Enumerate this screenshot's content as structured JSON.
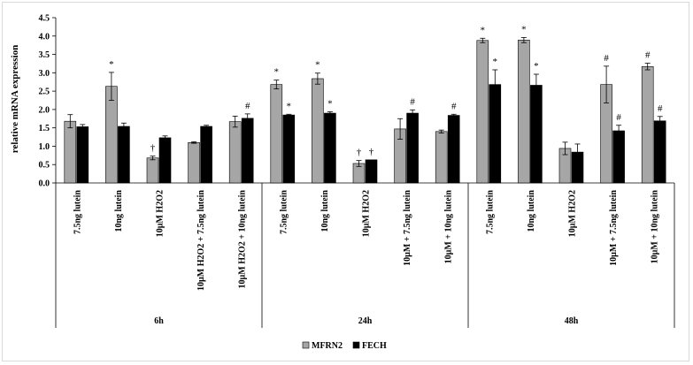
{
  "chart_data": {
    "type": "bar",
    "ylabel": "relative mRNA expression",
    "ylim": [
      0,
      4.5
    ],
    "yticks": [
      "0.0",
      "0.5",
      "1.0",
      "1.5",
      "2.0",
      "2.5",
      "3.0",
      "3.5",
      "4.0",
      "4.5"
    ],
    "grid": false,
    "legend_position": "bottom",
    "groups": [
      {
        "label": "6h",
        "categories": [
          "7.5ng lutein",
          "10ng lutein",
          "10µM H2O2",
          "10µM H2O2 + 7.5ng lutein",
          "10µM H2O2 + 10ng lutein"
        ]
      },
      {
        "label": "24h",
        "categories": [
          "7.5ng lutein",
          "10ng lutein",
          "10µM H2O2",
          "10µM + 7.5ng lutein",
          "10µM + 10ng lutein"
        ]
      },
      {
        "label": "48h",
        "categories": [
          "7.5ng lutein",
          "10ng lutein",
          "10µM H2O2",
          "10µM + 7.5ng lutein",
          "10µM + 10ng lutein"
        ]
      }
    ],
    "series": [
      {
        "name": "MFRN2",
        "color": "#a6a6a6",
        "values": [
          1.68,
          2.63,
          0.68,
          1.1,
          1.67,
          2.68,
          2.84,
          0.53,
          1.47,
          1.4,
          3.88,
          3.89,
          0.94,
          2.68,
          3.17
        ],
        "errors": [
          0.18,
          0.38,
          0.05,
          0.02,
          0.15,
          0.12,
          0.15,
          0.08,
          0.28,
          0.04,
          0.06,
          0.07,
          0.17,
          0.5,
          0.09
        ],
        "annotations": [
          "",
          "*",
          "†",
          "",
          "",
          "*",
          "*",
          "†",
          "",
          "",
          "*",
          "*",
          "",
          "#",
          "#"
        ]
      },
      {
        "name": "FECH",
        "color": "#000000",
        "values": [
          1.53,
          1.54,
          1.23,
          1.54,
          1.76,
          1.85,
          1.9,
          0.63,
          1.9,
          1.84,
          2.68,
          2.66,
          0.84,
          1.42,
          1.69
        ],
        "errors": [
          0.06,
          0.09,
          0.05,
          0.03,
          0.12,
          0.02,
          0.04,
          0.0,
          0.09,
          0.03,
          0.4,
          0.3,
          0.22,
          0.15,
          0.12
        ],
        "annotations": [
          "",
          "",
          "",
          "",
          "#",
          "*",
          "*",
          "†",
          "#",
          "#",
          "*",
          "*",
          "",
          "#",
          "#"
        ]
      }
    ]
  }
}
